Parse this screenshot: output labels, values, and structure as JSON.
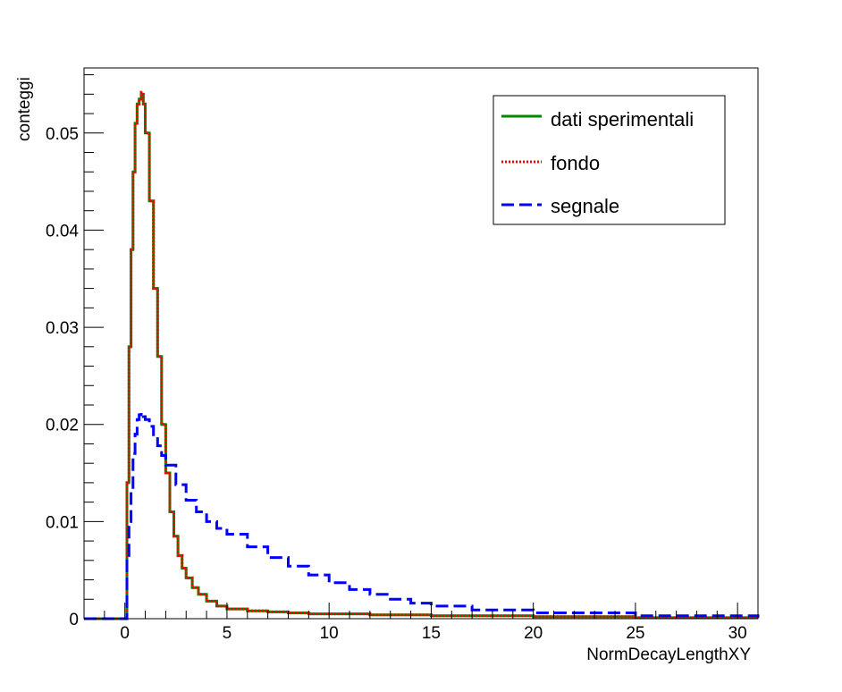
{
  "chart_data": {
    "type": "line",
    "title": "",
    "xlabel": "NormDecayLengthXY",
    "ylabel": "conteggi",
    "xlim": [
      -2,
      31
    ],
    "ylim": [
      0,
      0.0567
    ],
    "grid": false,
    "legend_placement": "top-right",
    "x_ticks": [
      0,
      5,
      10,
      15,
      20,
      25,
      30
    ],
    "x_tick_labels": [
      "0",
      "5",
      "10",
      "15",
      "20",
      "25",
      "30"
    ],
    "y_ticks": [
      0,
      0.01,
      0.02,
      0.03,
      0.04,
      0.05
    ],
    "y_tick_labels": [
      "0",
      "0.01",
      "0.02",
      "0.03",
      "0.04",
      "0.05"
    ],
    "series": [
      {
        "name": "dati sperimentali",
        "color": "#008800",
        "style": "solid",
        "x": [
          -2,
          -0.1,
          0.1,
          0.2,
          0.3,
          0.4,
          0.5,
          0.6,
          0.7,
          0.8,
          0.9,
          1.0,
          1.2,
          1.4,
          1.6,
          1.8,
          2.0,
          2.2,
          2.4,
          2.6,
          2.8,
          3.0,
          3.3,
          3.6,
          4.0,
          4.5,
          5.0,
          6.0,
          7.0,
          8.0,
          9.0,
          10.0,
          12.0,
          15.0,
          20.0,
          25.0,
          31.0
        ],
        "y": [
          0,
          0,
          0.014,
          0.028,
          0.038,
          0.046,
          0.051,
          0.053,
          0.0535,
          0.054,
          0.053,
          0.05,
          0.043,
          0.034,
          0.027,
          0.02,
          0.015,
          0.011,
          0.0085,
          0.0065,
          0.0052,
          0.0042,
          0.0032,
          0.0025,
          0.0018,
          0.0013,
          0.001,
          0.0008,
          0.0007,
          0.0006,
          0.0005,
          0.0005,
          0.0004,
          0.0003,
          0.0002,
          0.0001,
          0.0001
        ]
      },
      {
        "name": "fondo",
        "color": "#ff0000",
        "style": "dotted",
        "x": [
          -2,
          -0.1,
          0.1,
          0.2,
          0.3,
          0.4,
          0.5,
          0.6,
          0.7,
          0.8,
          0.9,
          1.0,
          1.2,
          1.4,
          1.6,
          1.8,
          2.0,
          2.2,
          2.4,
          2.6,
          2.8,
          3.0,
          3.3,
          3.6,
          4.0,
          4.5,
          5.0,
          6.0,
          7.0,
          8.0,
          9.0,
          10.0,
          12.0,
          15.0,
          20.0,
          25.0,
          31.0
        ],
        "y": [
          0,
          0,
          0.014,
          0.028,
          0.038,
          0.046,
          0.051,
          0.053,
          0.0535,
          0.0542,
          0.053,
          0.05,
          0.043,
          0.034,
          0.027,
          0.02,
          0.015,
          0.011,
          0.0085,
          0.0065,
          0.0052,
          0.0042,
          0.0032,
          0.0025,
          0.0018,
          0.0013,
          0.001,
          0.0008,
          0.0007,
          0.0006,
          0.0005,
          0.0005,
          0.0004,
          0.0003,
          0.0002,
          0.0001,
          0.0001
        ]
      },
      {
        "name": "segnale",
        "color": "#0000ff",
        "style": "dashed",
        "x": [
          -2,
          -0.1,
          0.1,
          0.2,
          0.3,
          0.4,
          0.5,
          0.6,
          0.7,
          0.8,
          0.9,
          1.0,
          1.2,
          1.4,
          1.6,
          1.8,
          2.0,
          2.5,
          3.0,
          3.5,
          4.0,
          4.5,
          5.0,
          6.0,
          7.0,
          8.0,
          9.0,
          10.0,
          11.0,
          12.0,
          13.0,
          14.0,
          15.0,
          17.0,
          20.0,
          25.0,
          31.0
        ],
        "y": [
          0,
          0,
          0.0065,
          0.01,
          0.0135,
          0.017,
          0.019,
          0.0205,
          0.021,
          0.0212,
          0.0208,
          0.0205,
          0.0198,
          0.0188,
          0.0178,
          0.0168,
          0.0158,
          0.0138,
          0.0122,
          0.011,
          0.01,
          0.0093,
          0.0087,
          0.0074,
          0.0063,
          0.0054,
          0.0045,
          0.0037,
          0.003,
          0.0025,
          0.002,
          0.0016,
          0.0013,
          0.0009,
          0.0006,
          0.0003,
          0.0001
        ]
      }
    ]
  }
}
